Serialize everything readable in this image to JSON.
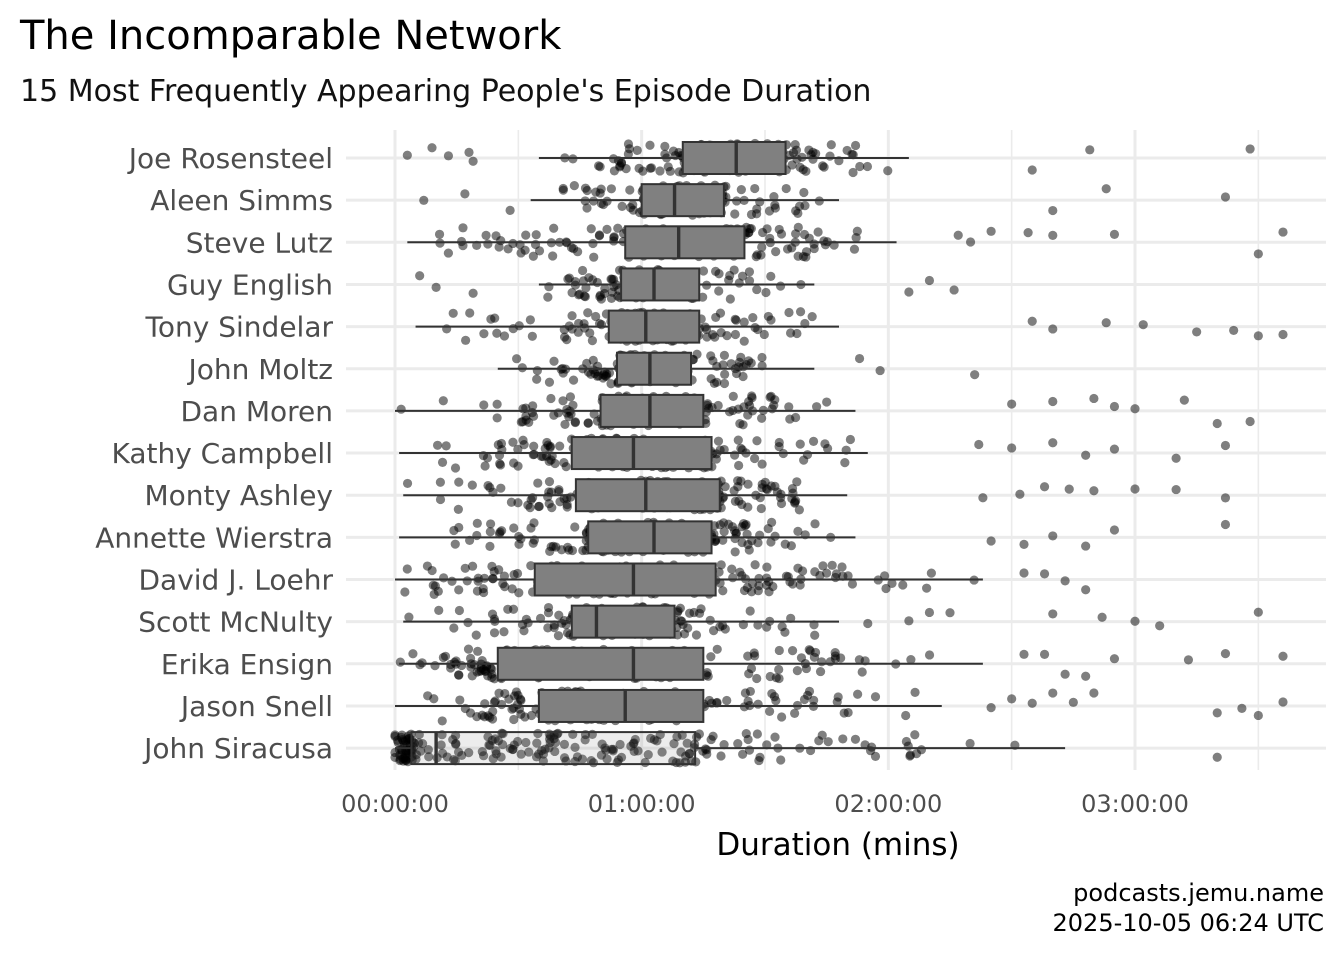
{
  "title": "The Incomparable Network",
  "subtitle": "15 Most Frequently Appearing People's Episode Duration",
  "caption_line1": "podcasts.jemu.name",
  "caption_line2": "2025-10-05 06:24 UTC",
  "colors": {
    "point": "#000000",
    "box_fill": "#808080",
    "box_border": "#333333",
    "grid": "#ebebeb",
    "text": "#4d4d4d"
  },
  "chart_data": {
    "type": "boxplot",
    "orientation": "horizontal",
    "title": "The Incomparable Network",
    "subtitle": "15 Most Frequently Appearing People's Episode Duration",
    "xlabel": "Duration (mins)",
    "ylabel": "",
    "xlim_minutes": [
      0,
      225
    ],
    "xticks": [
      {
        "minutes": 0,
        "label": "00:00:00"
      },
      {
        "minutes": 60,
        "label": "01:00:00"
      },
      {
        "minutes": 120,
        "label": "02:00:00"
      },
      {
        "minutes": 180,
        "label": "03:00:00"
      }
    ],
    "grid": true,
    "legend": "none",
    "series": [
      {
        "name": "Joe Rosensteel",
        "q1": 70,
        "median": 83,
        "q3": 95,
        "whisker_low": 35,
        "whisker_high": 125,
        "outliers": [
          3,
          9,
          13,
          18,
          19,
          155,
          169,
          208
        ]
      },
      {
        "name": "Aleen Simms",
        "q1": 60,
        "median": 68,
        "q3": 80,
        "whisker_low": 33,
        "whisker_high": 108,
        "outliers": [
          7,
          17,
          28,
          160,
          173,
          202
        ]
      },
      {
        "name": "Steve Lutz",
        "q1": 56,
        "median": 69,
        "q3": 85,
        "whisker_low": 3,
        "whisker_high": 122,
        "outliers": [
          137,
          140,
          145,
          154,
          160,
          175,
          210,
          216
        ]
      },
      {
        "name": "Guy English",
        "q1": 55,
        "median": 63,
        "q3": 74,
        "whisker_low": 35,
        "whisker_high": 102,
        "outliers": [
          6,
          10,
          19,
          125,
          130,
          136
        ]
      },
      {
        "name": "Tony Sindelar",
        "q1": 52,
        "median": 61,
        "q3": 74,
        "whisker_low": 5,
        "whisker_high": 108,
        "outliers": [
          155,
          160,
          173,
          182,
          195,
          204,
          210,
          216
        ]
      },
      {
        "name": "John Moltz",
        "q1": 54,
        "median": 62,
        "q3": 72,
        "whisker_low": 25,
        "whisker_high": 102,
        "outliers": [
          113,
          118,
          141
        ]
      },
      {
        "name": "Dan Moren",
        "q1": 50,
        "median": 62,
        "q3": 75,
        "whisker_low": 0,
        "whisker_high": 112,
        "outliers": [
          150,
          160,
          170,
          175,
          180,
          192,
          200,
          208
        ]
      },
      {
        "name": "Kathy Campbell",
        "q1": 43,
        "median": 58,
        "q3": 77,
        "whisker_low": 1,
        "whisker_high": 115,
        "outliers": [
          142,
          150,
          160,
          168,
          175,
          190,
          202
        ]
      },
      {
        "name": "Monty Ashley",
        "q1": 44,
        "median": 61,
        "q3": 79,
        "whisker_low": 2,
        "whisker_high": 110,
        "outliers": [
          143,
          152,
          158,
          164,
          170,
          180,
          190,
          202
        ]
      },
      {
        "name": "Annette Wierstra",
        "q1": 47,
        "median": 63,
        "q3": 77,
        "whisker_low": 1,
        "whisker_high": 112,
        "outliers": [
          145,
          153,
          160,
          168,
          175,
          202
        ]
      },
      {
        "name": "David J. Loehr",
        "q1": 34,
        "median": 58,
        "q3": 78,
        "whisker_low": 0,
        "whisker_high": 143,
        "outliers": [
          153,
          158,
          163,
          168
        ]
      },
      {
        "name": "Scott McNulty",
        "q1": 43,
        "median": 49,
        "q3": 68,
        "whisker_low": 2,
        "whisker_high": 108,
        "outliers": [
          115,
          125,
          130,
          135,
          160,
          172,
          180,
          186,
          210
        ]
      },
      {
        "name": "Erika Ensign",
        "q1": 25,
        "median": 58,
        "q3": 75,
        "whisker_low": 1,
        "whisker_high": 143,
        "outliers": [
          153,
          158,
          163,
          168,
          175,
          193,
          202,
          216
        ]
      },
      {
        "name": "Jason Snell",
        "q1": 35,
        "median": 56,
        "q3": 75,
        "whisker_low": 0,
        "whisker_high": 133,
        "outliers": [
          145,
          150,
          155,
          160,
          165,
          170,
          200,
          206,
          210,
          216
        ]
      },
      {
        "name": "John Siracusa",
        "q1": 4,
        "median": 10,
        "q3": 73,
        "whisker_low": 0,
        "whisker_high": 163,
        "outliers": [
          200
        ]
      }
    ]
  }
}
